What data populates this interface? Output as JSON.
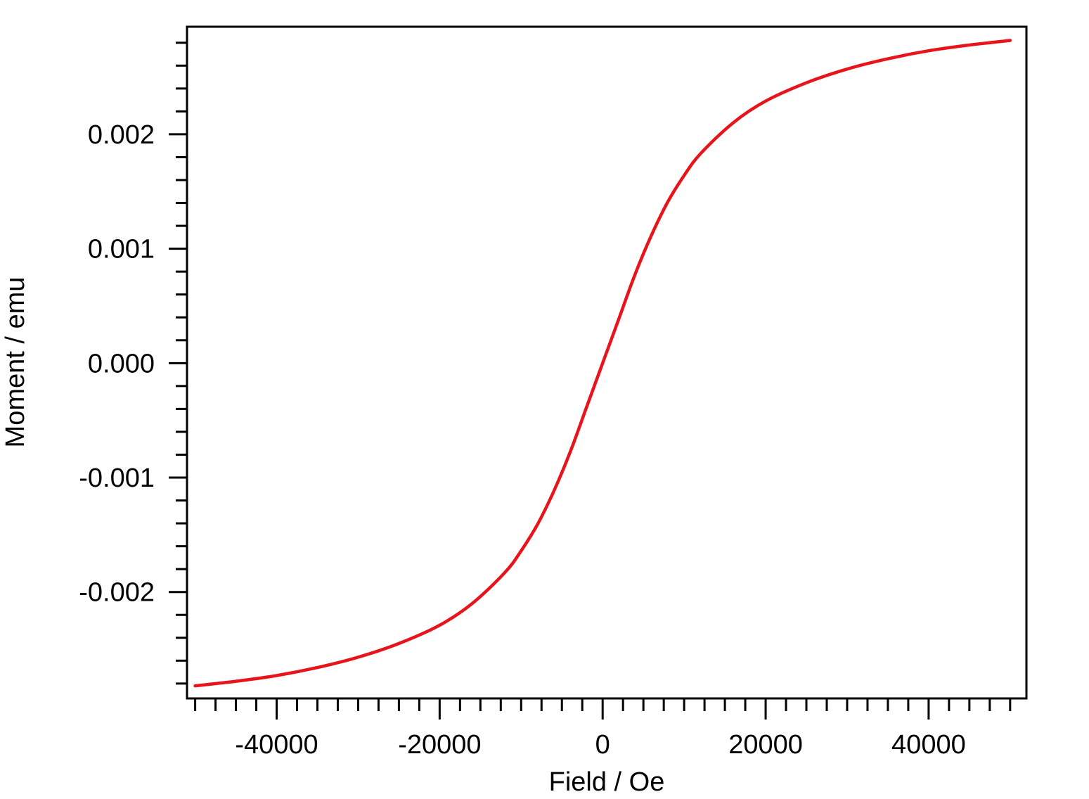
{
  "chart_data": {
    "type": "line",
    "xlabel": "Field / Oe",
    "ylabel": "Moment / emu",
    "xlim": [
      -51000,
      52000
    ],
    "ylim": [
      -0.00293,
      0.00294
    ],
    "x_ticks": [
      -40000,
      -20000,
      0,
      20000,
      40000
    ],
    "x_tick_labels": [
      "-40000",
      "-20000",
      "0",
      "20000",
      "40000"
    ],
    "y_ticks": [
      -0.002,
      -0.001,
      0,
      0.001,
      0.002
    ],
    "y_tick_labels": [
      "-0.002",
      "-0.001",
      "0.000",
      "0.001",
      "0.002"
    ],
    "grid": false,
    "legend": "none",
    "series": [
      {
        "color": "#e8141b",
        "x": [
          -50000,
          -45000,
          -40000,
          -35000,
          -30000,
          -25000,
          -20000,
          -16000,
          -12000,
          -10000,
          -8000,
          -6000,
          -4000,
          -2000,
          0,
          2000,
          4000,
          6000,
          8000,
          10000,
          12000,
          16000,
          20000,
          25000,
          30000,
          35000,
          40000,
          45000,
          50000
        ],
        "y": [
          -0.00282,
          -0.00278,
          -0.00273,
          -0.00266,
          -0.00257,
          -0.00245,
          -0.00229,
          -0.0021,
          -0.00183,
          -0.00164,
          -0.00141,
          -0.00112,
          -0.00078,
          -0.00039,
          0.0,
          0.00039,
          0.00078,
          0.00112,
          0.00141,
          0.00164,
          0.00183,
          0.0021,
          0.00229,
          0.00245,
          0.00257,
          0.00266,
          0.00273,
          0.00278,
          0.00282
        ]
      }
    ]
  }
}
